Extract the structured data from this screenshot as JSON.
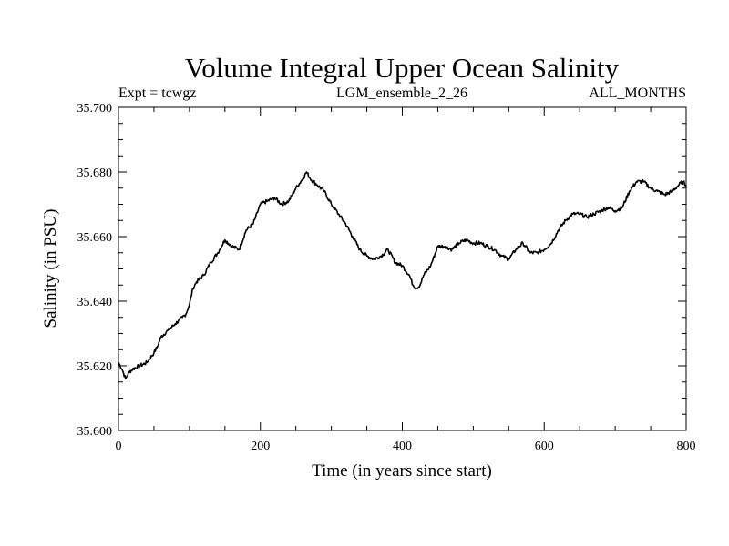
{
  "chart_data": {
    "type": "line",
    "title": "Volume Integral Upper Ocean Salinity",
    "subtitle_left": "Expt = tcwgz",
    "subtitle_center": "LGM_ensemble_2_26",
    "subtitle_right": "ALL_MONTHS",
    "xlabel": "Time (in years since start)",
    "ylabel": "Salinity (in PSU)",
    "xlim": [
      0,
      800
    ],
    "ylim": [
      35.6,
      35.7
    ],
    "x_ticks": [
      0,
      200,
      400,
      600,
      800
    ],
    "x_tick_labels": [
      "0",
      "200",
      "400",
      "600",
      "800"
    ],
    "y_ticks": [
      35.6,
      35.62,
      35.64,
      35.66,
      35.68,
      35.7
    ],
    "y_tick_labels": [
      "35.600",
      "35.620",
      "35.640",
      "35.660",
      "35.680",
      "35.700"
    ],
    "grid": false,
    "line_color": "#000000",
    "series": [
      {
        "name": "Salinity",
        "x": [
          0,
          5,
          10,
          15,
          20,
          30,
          40,
          50,
          55,
          60,
          70,
          80,
          90,
          95,
          100,
          105,
          110,
          120,
          130,
          140,
          150,
          160,
          170,
          180,
          190,
          200,
          210,
          220,
          230,
          240,
          250,
          260,
          265,
          270,
          280,
          290,
          300,
          310,
          320,
          330,
          340,
          350,
          360,
          370,
          380,
          390,
          400,
          410,
          415,
          420,
          425,
          430,
          440,
          450,
          460,
          470,
          480,
          490,
          500,
          510,
          520,
          530,
          540,
          550,
          560,
          570,
          580,
          590,
          600,
          610,
          620,
          630,
          640,
          650,
          660,
          670,
          680,
          690,
          700,
          710,
          720,
          730,
          740,
          750,
          760,
          770,
          780,
          790,
          795,
          800
        ],
        "values": [
          35.621,
          35.619,
          35.616,
          35.618,
          35.619,
          35.62,
          35.621,
          35.624,
          35.626,
          35.629,
          35.631,
          35.633,
          35.635,
          35.636,
          35.639,
          35.644,
          35.646,
          35.648,
          35.652,
          35.655,
          35.659,
          35.657,
          35.656,
          35.662,
          35.664,
          35.67,
          35.671,
          35.672,
          35.67,
          35.671,
          35.675,
          35.678,
          35.68,
          35.678,
          35.676,
          35.674,
          35.67,
          35.667,
          35.664,
          35.66,
          35.656,
          35.654,
          35.653,
          35.654,
          35.656,
          35.652,
          35.651,
          35.648,
          35.645,
          35.644,
          35.645,
          35.648,
          35.651,
          35.657,
          35.657,
          35.656,
          35.658,
          35.659,
          35.658,
          35.658,
          35.657,
          35.656,
          35.654,
          35.653,
          35.656,
          35.658,
          35.655,
          35.655,
          35.656,
          35.658,
          35.662,
          35.665,
          35.667,
          35.667,
          35.666,
          35.667,
          35.668,
          35.669,
          35.668,
          35.669,
          35.674,
          35.677,
          35.677,
          35.675,
          35.674,
          35.673,
          35.674,
          35.676,
          35.677,
          35.676
        ]
      }
    ]
  }
}
